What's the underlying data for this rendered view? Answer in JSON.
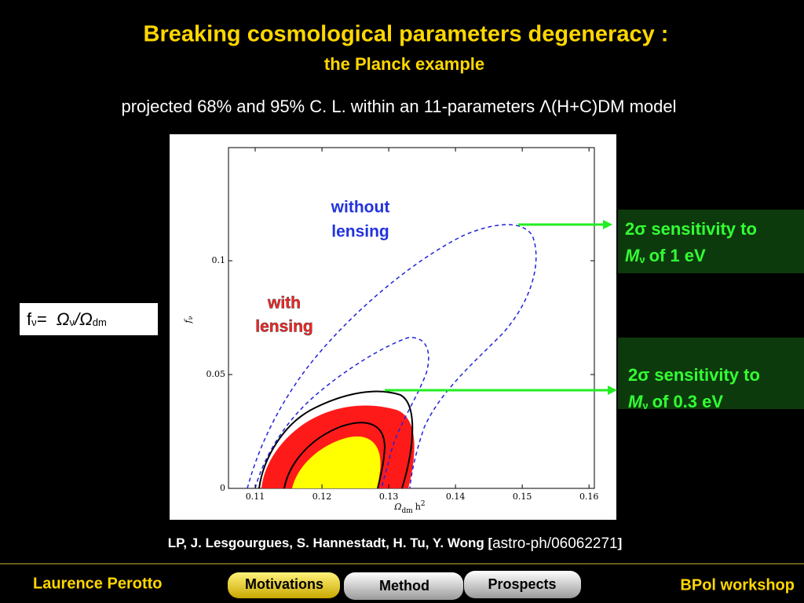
{
  "header": {
    "title": "Breaking cosmological parameters degeneracy :",
    "subtitle": "the Planck example"
  },
  "description": "projected 68% and 95% C. L.  within an 11-parameters Λ(H+C)DM model",
  "chart_data": {
    "type": "contour",
    "xlabel": {
      "symbol": "Ω",
      "subscript": "dm",
      "rest": "h",
      "superscript": "2"
    },
    "ylabel": {
      "symbol": "f",
      "subscript": "ν"
    },
    "xlim": [
      0.106,
      0.1608
    ],
    "xticks": [
      0.11,
      0.12,
      0.13,
      0.14,
      0.15,
      0.16
    ],
    "ylim": [
      0,
      0.1497
    ],
    "yticks": [
      0,
      0.05,
      0.1
    ]
  },
  "annotations": {
    "without_lensing": [
      "without",
      "lensing"
    ],
    "with_lensing": [
      "with",
      "lensing"
    ]
  },
  "formula": [
    "f",
    "ν",
    "=  Ω",
    "ν",
    "/Ω",
    "dm"
  ],
  "callouts": [
    {
      "line1": "2σ sensitivity to",
      "symbol": "M",
      "subscript": "ν",
      "rest": "of 1 eV"
    },
    {
      "line1": "2σ sensitivity to",
      "symbol": "M",
      "subscript": "ν",
      "rest": "of 0.3 eV"
    }
  ],
  "citation": {
    "authors": "LP, J. Lesgourgues, S. Hannestadt, H. Tu, Y. Wong [",
    "reference": "astro-ph/06062271",
    "closing": "]"
  },
  "footer": {
    "author": "Laurence Perotto",
    "tabs": [
      "Motivations",
      "Method",
      "Prospects"
    ],
    "event": "BPol workshop"
  }
}
